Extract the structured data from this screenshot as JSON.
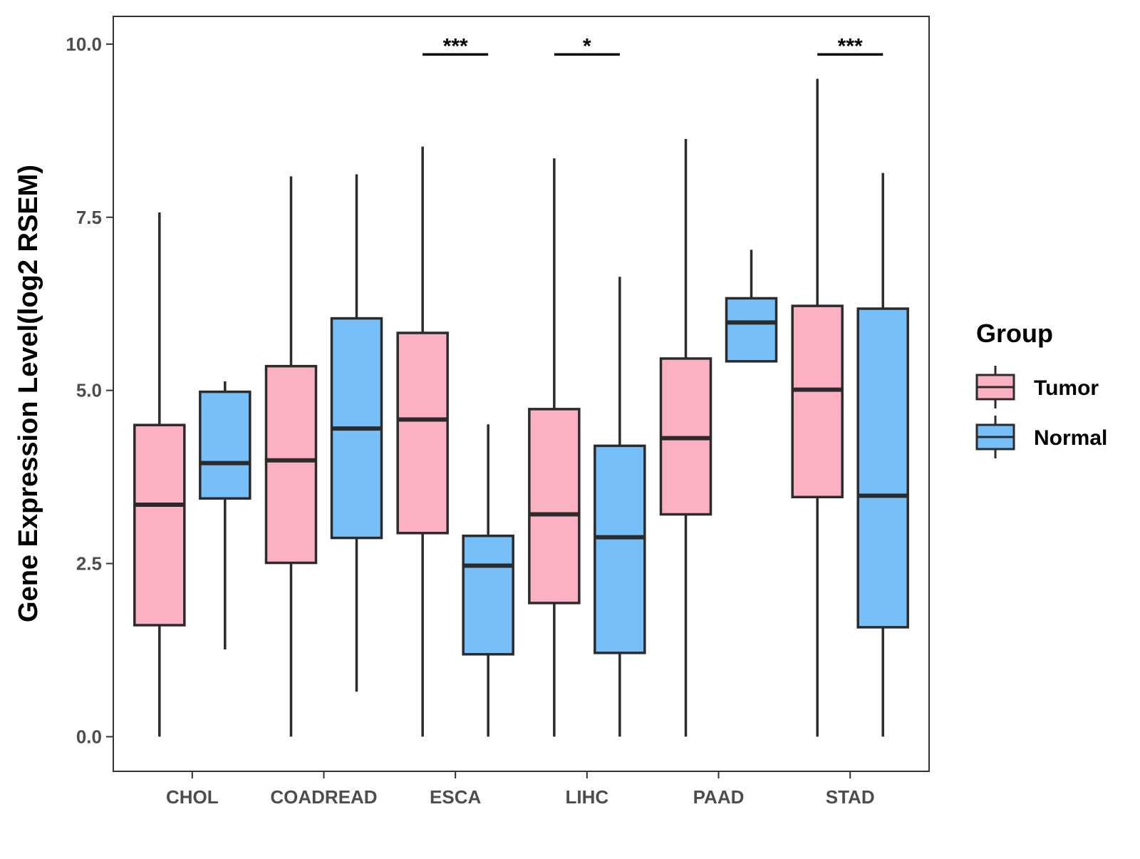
{
  "chart_data": {
    "type": "boxplot",
    "title": "",
    "xlabel": "",
    "ylabel": "Gene Expression Level(log2 RSEM)",
    "ylim": [
      -0.5,
      10.4
    ],
    "yticks": [
      0.0,
      2.5,
      5.0,
      7.5,
      10.0
    ],
    "ytick_labels": [
      "0.0",
      "2.5",
      "5.0",
      "7.5",
      "10.0"
    ],
    "categories": [
      "CHOL",
      "COADREAD",
      "ESCA",
      "LIHC",
      "PAAD",
      "STAD"
    ],
    "legend": {
      "title": "Group",
      "position": "right",
      "entries": [
        {
          "name": "Tumor",
          "color": "#FBB1C2"
        },
        {
          "name": "Normal",
          "color": "#76BFF8"
        }
      ]
    },
    "series": [
      {
        "name": "Tumor",
        "color": "#FBB1C2",
        "boxes": [
          {
            "min": 0.0,
            "q1": 1.61,
            "median": 3.35,
            "q3": 4.5,
            "max": 7.57
          },
          {
            "min": 0.0,
            "q1": 2.51,
            "median": 3.99,
            "q3": 5.35,
            "max": 8.09
          },
          {
            "min": 0.0,
            "q1": 2.94,
            "median": 4.58,
            "q3": 5.83,
            "max": 8.52
          },
          {
            "min": 0.0,
            "q1": 1.93,
            "median": 3.21,
            "q3": 4.73,
            "max": 8.35
          },
          {
            "min": 0.0,
            "q1": 3.21,
            "median": 4.31,
            "q3": 5.46,
            "max": 8.63
          },
          {
            "min": 0.0,
            "q1": 3.46,
            "median": 5.01,
            "q3": 6.22,
            "max": 9.5
          }
        ]
      },
      {
        "name": "Normal",
        "color": "#76BFF8",
        "boxes": [
          {
            "min": 1.26,
            "q1": 3.44,
            "median": 3.95,
            "q3": 4.98,
            "max": 5.13
          },
          {
            "min": 0.65,
            "q1": 2.87,
            "median": 4.45,
            "q3": 6.04,
            "max": 8.12
          },
          {
            "min": 0.0,
            "q1": 1.19,
            "median": 2.47,
            "q3": 2.9,
            "max": 4.51
          },
          {
            "min": 0.0,
            "q1": 1.21,
            "median": 2.88,
            "q3": 4.2,
            "max": 6.64
          },
          {
            "min": 5.42,
            "q1": 5.42,
            "median": 5.98,
            "q3": 6.33,
            "max": 7.03
          },
          {
            "min": 0.0,
            "q1": 1.58,
            "median": 3.48,
            "q3": 6.18,
            "max": 8.14
          }
        ]
      }
    ],
    "annotations": [
      {
        "category": "ESCA",
        "label": "***",
        "y": 9.85
      },
      {
        "category": "LIHC",
        "label": "*",
        "y": 9.85
      },
      {
        "category": "STAD",
        "label": "***",
        "y": 9.85
      }
    ]
  }
}
